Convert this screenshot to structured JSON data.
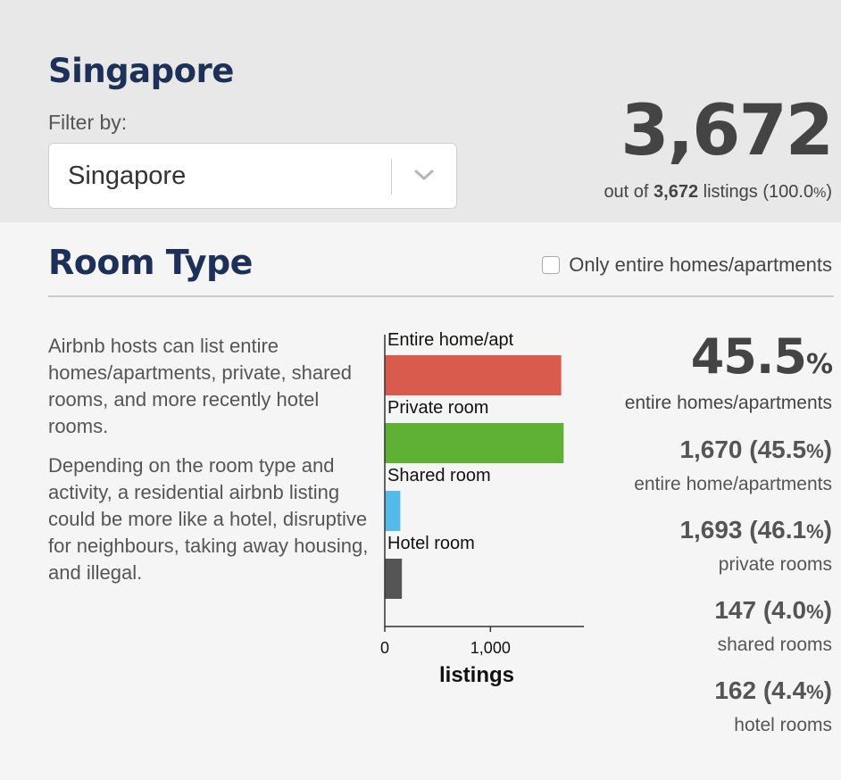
{
  "header": {
    "city_title": "Singapore",
    "filter_label": "Filter by:",
    "filter_select": {
      "value": "Singapore"
    },
    "total_count": "3,672",
    "listings_prefix": "out of",
    "listings_total": "3,672",
    "listings_suffix": "listings",
    "listings_pct": "(100.0",
    "listings_pct_sign": "%",
    "listings_pct_close": ")"
  },
  "room_type": {
    "title": "Room Type",
    "checkbox_label": "Only entire homes/apartments",
    "checkbox_checked": false,
    "description": [
      "Airbnb hosts can list entire homes/apartments, private, shared rooms, and more recently hotel rooms.",
      "Depending on the room type and activity, a residential airbnb listing could be more like a hotel, disruptive for neighbours, taking away housing, and illegal."
    ],
    "hero_value": "45.5",
    "hero_pct_sign": "%",
    "hero_label": "entire homes/apartments",
    "stats": [
      {
        "value": "1,670 (45.5",
        "pct_sign": "%",
        "close": ")",
        "label": "entire home/apartments"
      },
      {
        "value": "1,693 (46.1",
        "pct_sign": "%",
        "close": ")",
        "label": "private rooms"
      },
      {
        "value": "147 (4.0",
        "pct_sign": "%",
        "close": ")",
        "label": "shared rooms"
      },
      {
        "value": "162 (4.4",
        "pct_sign": "%",
        "close": ")",
        "label": "hotel rooms"
      }
    ]
  },
  "chart_data": {
    "type": "bar",
    "orientation": "horizontal",
    "categories": [
      "Entire home/apt",
      "Private room",
      "Shared room",
      "Hotel room"
    ],
    "values": [
      1670,
      1693,
      147,
      162
    ],
    "colors": [
      "#d95b4e",
      "#5fb135",
      "#55b9ea",
      "#555555"
    ],
    "xlabel": "listings",
    "xticks": [
      0,
      1000
    ],
    "xtick_labels": [
      "0",
      "1,000"
    ],
    "xlim": [
      0,
      1800
    ],
    "grid": false
  },
  "icons": {
    "select_chevron": "chevron-down-icon"
  }
}
